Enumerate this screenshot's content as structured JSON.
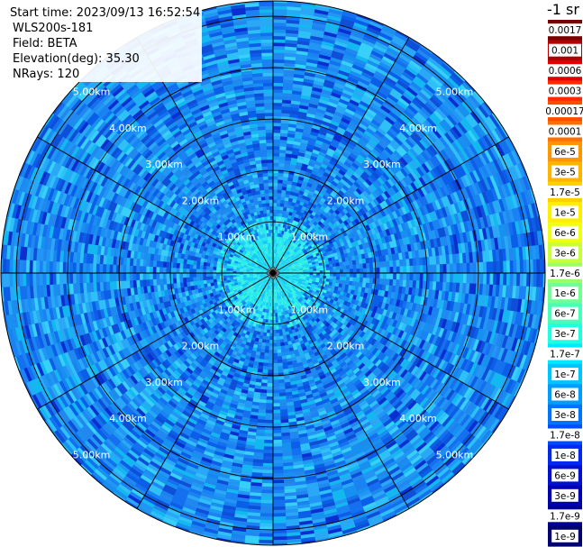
{
  "header": {
    "start_time": "Start time: 2023/09/13 16:52:54",
    "instrument": "WLS200s-181",
    "field": "Field: BETA",
    "elevation": "Elevation(deg): 35.30",
    "nrays": "NRays: 120"
  },
  "chart_data": {
    "type": "heatmap",
    "projection": "polar",
    "field": "BETA",
    "elevation_deg": 35.3,
    "nrays": 120,
    "range_max_km": 5.3,
    "range_rings_km": [
      1,
      2,
      3,
      4,
      5
    ],
    "range_ring_labels": [
      "1.00km",
      "2.00km",
      "3.00km",
      "4.00km",
      "5.00km"
    ],
    "spoke_count": 12,
    "colorbar": {
      "unit": "-1 sr",
      "ticks": [
        "0.0017",
        "0.001",
        "0.0006",
        "0.0003",
        "0.00017",
        "0.0001",
        "6e-5",
        "3e-5",
        "1.7e-5",
        "1e-5",
        "6e-6",
        "3e-6",
        "1.7e-6",
        "1e-6",
        "6e-7",
        "3e-7",
        "1.7e-7",
        "1e-7",
        "6e-8",
        "3e-8",
        "1.7e-8",
        "1e-8",
        "6e-9",
        "3e-9",
        "1.7e-9",
        "1e-9"
      ],
      "colors": [
        "#7a0000",
        "#b00000",
        "#e00000",
        "#ff2a00",
        "#ff4d00",
        "#ff7000",
        "#ff9500",
        "#ffb400",
        "#ffd000",
        "#ffee00",
        "#f0ff10",
        "#c8ff3a",
        "#9cff64",
        "#70ff90",
        "#48ffb8",
        "#20ffe0",
        "#00e8ff",
        "#00c4ff",
        "#009cff",
        "#0074ff",
        "#004cff",
        "#0028f0",
        "#0010d0",
        "#0000b0",
        "#000090",
        "#000070"
      ],
      "light_text_indices": [
        0,
        1,
        2,
        3,
        23,
        24,
        25
      ]
    },
    "field_summary": {
      "center_color": "#2af0e8",
      "mid_color": "#1a7cf0",
      "outer_color": "#1a88ea"
    }
  }
}
